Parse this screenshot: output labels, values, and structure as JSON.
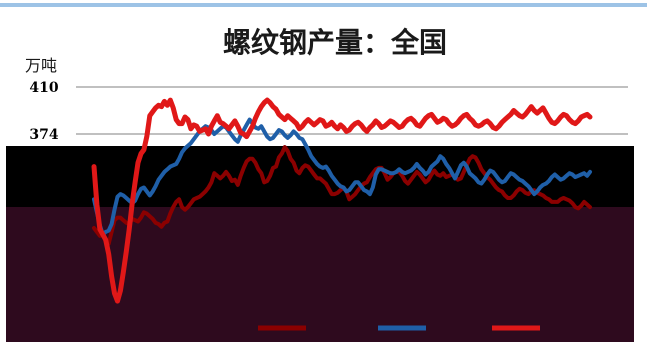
{
  "page": {
    "accent_color": "#9dc3e6"
  },
  "chart_data": {
    "type": "line",
    "title": "螺纹钢产量：全国",
    "ylabel": "万吨",
    "ylim": [
      230,
      410
    ],
    "y_ticks": [
      374,
      410
    ],
    "grid": true,
    "legend": "bottom",
    "legend_labels": [
      "",
      "",
      ""
    ],
    "overlays": {
      "band_color": "#000000",
      "lower_panel_color": "#2e0a1e"
    },
    "series": [
      {
        "color": "#8b0000",
        "values": [
          302,
          299,
          296,
          297,
          292,
          290,
          299,
          308,
          310,
          310,
          308,
          306,
          305,
          309,
          308,
          307,
          310,
          314,
          313,
          311,
          309,
          306,
          305,
          303,
          306,
          307,
          313,
          318,
          322,
          324,
          318,
          316,
          318,
          321,
          324,
          325,
          326,
          328,
          330,
          333,
          337,
          344,
          342,
          340,
          342,
          345,
          342,
          338,
          339,
          335,
          342,
          348,
          353,
          355,
          355,
          352,
          347,
          344,
          337,
          338,
          342,
          348,
          349,
          356,
          359,
          364,
          361,
          355,
          352,
          346,
          344,
          348,
          350,
          349,
          346,
          343,
          340,
          340,
          338,
          336,
          332,
          328,
          328,
          329,
          331,
          333,
          330,
          324,
          326,
          328,
          331,
          334,
          336,
          337,
          341,
          344,
          347,
          348,
          348,
          344,
          339,
          341,
          344,
          345,
          345,
          342,
          338,
          336,
          339,
          342,
          345,
          343,
          340,
          337,
          339,
          343,
          346,
          343,
          342,
          344,
          341,
          342,
          343,
          341,
          339,
          340,
          345,
          350,
          355,
          357,
          356,
          352,
          347,
          344,
          341,
          339,
          336,
          333,
          331,
          330,
          327,
          325,
          325,
          327,
          330,
          332,
          331,
          329,
          328,
          330,
          331,
          329,
          328,
          327,
          325,
          324,
          322,
          322,
          322,
          324,
          325,
          324,
          323,
          321,
          318,
          317,
          319,
          322,
          320,
          318
        ]
      },
      {
        "color": "#1f5fa8",
        "values": [
          324,
          314,
          304,
          297,
          299,
          300,
          305,
          316,
          326,
          328,
          327,
          325,
          323,
          321,
          323,
          328,
          332,
          333,
          330,
          327,
          330,
          334,
          339,
          342,
          345,
          347,
          349,
          350,
          351,
          355,
          360,
          363,
          365,
          367,
          370,
          373,
          376,
          378,
          380,
          379,
          377,
          374,
          376,
          378,
          380,
          379,
          376,
          373,
          370,
          368,
          373,
          377,
          381,
          385,
          382,
          379,
          378,
          380,
          376,
          372,
          370,
          371,
          374,
          377,
          376,
          373,
          371,
          373,
          376,
          374,
          371,
          370,
          366,
          362,
          357,
          354,
          351,
          349,
          348,
          349,
          346,
          342,
          339,
          336,
          334,
          333,
          330,
          331,
          334,
          337,
          337,
          334,
          331,
          330,
          328,
          333,
          343,
          347,
          347,
          346,
          345,
          344,
          344,
          345,
          347,
          345,
          344,
          345,
          346,
          348,
          351,
          348,
          346,
          343,
          345,
          349,
          351,
          353,
          357,
          355,
          351,
          348,
          344,
          340,
          345,
          350,
          352,
          349,
          344,
          342,
          340,
          337,
          336,
          339,
          343,
          346,
          345,
          342,
          339,
          337,
          338,
          341,
          344,
          343,
          341,
          339,
          338,
          336,
          334,
          331,
          328,
          330,
          333,
          335,
          336,
          338,
          341,
          343,
          341,
          339,
          340,
          342,
          344,
          343,
          341,
          342,
          343,
          344,
          342,
          345
        ]
      },
      {
        "color": "#e01818",
        "values": [
          349,
          320,
          301,
          297,
          293,
          282,
          265,
          252,
          246,
          254,
          268,
          284,
          301,
          321,
          337,
          352,
          359,
          362,
          372,
          388,
          391,
          394,
          396,
          395,
          399,
          396,
          400,
          394,
          385,
          382,
          382,
          387,
          385,
          378,
          381,
          380,
          376,
          377,
          378,
          374,
          380,
          384,
          388,
          383,
          382,
          380,
          378,
          381,
          384,
          380,
          375,
          374,
          372,
          376,
          380,
          386,
          391,
          395,
          398,
          400,
          398,
          395,
          393,
          389,
          387,
          385,
          388,
          386,
          384,
          382,
          378,
          380,
          383,
          385,
          383,
          381,
          383,
          385,
          384,
          380,
          381,
          383,
          380,
          378,
          381,
          379,
          376,
          377,
          380,
          382,
          383,
          381,
          378,
          376,
          379,
          381,
          384,
          382,
          379,
          380,
          382,
          384,
          383,
          381,
          379,
          380,
          383,
          385,
          386,
          384,
          381,
          380,
          383,
          386,
          388,
          389,
          386,
          383,
          384,
          386,
          385,
          382,
          380,
          381,
          383,
          386,
          388,
          389,
          386,
          384,
          381,
          380,
          381,
          383,
          384,
          382,
          379,
          378,
          380,
          383,
          385,
          387,
          389,
          392,
          390,
          388,
          387,
          389,
          392,
          395,
          392,
          390,
          392,
          394,
          390,
          386,
          383,
          382,
          384,
          387,
          389,
          388,
          385,
          383,
          382,
          384,
          387,
          388,
          389,
          387
        ]
      }
    ]
  }
}
